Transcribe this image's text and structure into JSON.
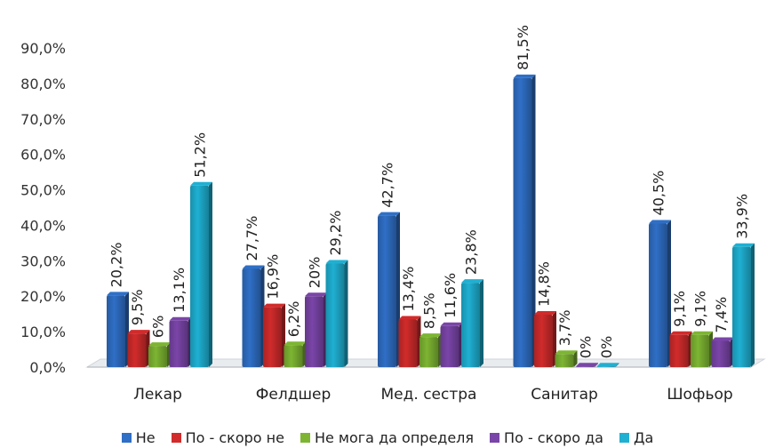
{
  "chart_data": {
    "type": "bar",
    "categories": [
      "Лекар",
      "Фелдшер",
      "Мед. сестра",
      "Санитар",
      "Шофьор"
    ],
    "series": [
      {
        "name": "Не",
        "color": "#2F6FC6",
        "values": [
          20.2,
          27.7,
          42.7,
          81.5,
          40.5
        ],
        "labels": [
          "20,2%",
          "27,7%",
          "42,7%",
          "81,5%",
          "40,5%"
        ]
      },
      {
        "name": "По - скоро не",
        "color": "#D12B2B",
        "values": [
          9.5,
          16.9,
          13.4,
          14.8,
          9.1
        ],
        "labels": [
          "9,5%",
          "16,9%",
          "13,4%",
          "14,8%",
          "9,1%"
        ]
      },
      {
        "name": "Не мога да определя",
        "color": "#7DB532",
        "values": [
          6,
          6.2,
          8.5,
          3.7,
          9.1
        ],
        "labels": [
          "6%",
          "6,2%",
          "8,5%",
          "3,7%",
          "9,1%"
        ]
      },
      {
        "name": "По - скоро да",
        "color": "#7A45A8",
        "values": [
          13.1,
          20,
          11.6,
          0,
          7.4
        ],
        "labels": [
          "13,1%",
          "20%",
          "11,6%",
          "0%",
          "7,4%"
        ]
      },
      {
        "name": "Да",
        "color": "#1FB0D2",
        "values": [
          51.2,
          29.2,
          23.8,
          0,
          33.9
        ],
        "labels": [
          "51,2%",
          "29,2%",
          "23,8%",
          "0%",
          "33,9%"
        ]
      }
    ],
    "y_ticks": [
      "0,0%",
      "10,0%",
      "20,0%",
      "30,0%",
      "40,0%",
      "50,0%",
      "60,0%",
      "70,0%",
      "80,0%",
      "90,0%"
    ],
    "ylim": [
      0,
      90
    ],
    "grid": false,
    "legend_position": "bottom"
  }
}
